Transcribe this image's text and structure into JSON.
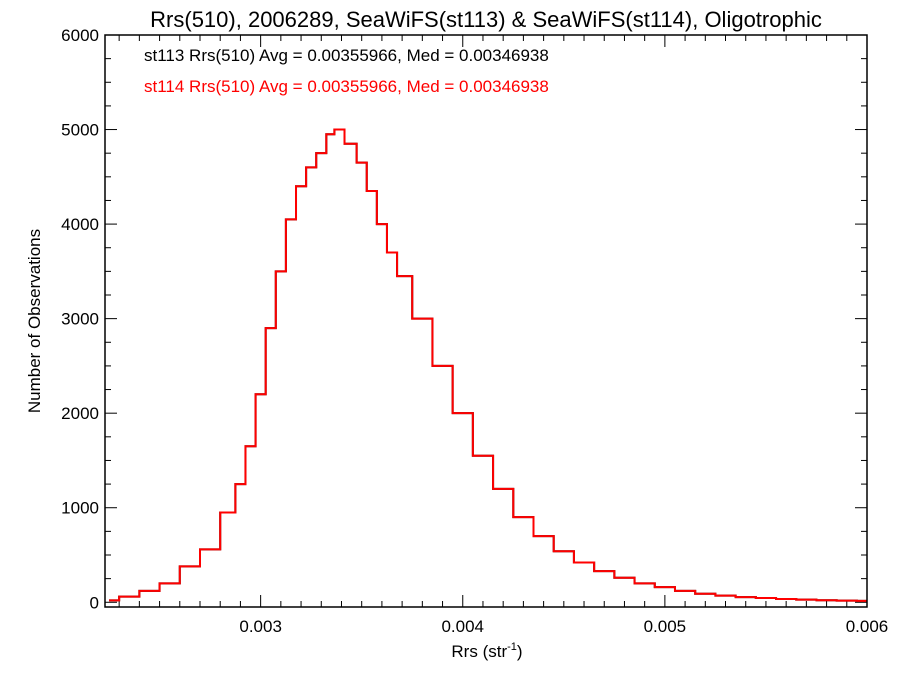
{
  "chart_data": {
    "type": "line",
    "title": "Rrs(510), 2006289, SeaWiFS(st113) & SeaWiFS(st114), Oligotrophic",
    "xlabel": "Rrs (str",
    "xlabel_superscript": "-1",
    "xlabel_close": ")",
    "ylabel": "Number of Observations",
    "xlim": [
      0.00223,
      0.006
    ],
    "ylim": [
      -50,
      6000
    ],
    "xticks": [
      {
        "value": 0.003,
        "label": "0.003"
      },
      {
        "value": 0.004,
        "label": "0.004"
      },
      {
        "value": 0.005,
        "label": "0.005"
      },
      {
        "value": 0.006,
        "label": "0.006"
      }
    ],
    "yticks": [
      {
        "value": 0,
        "label": "0"
      },
      {
        "value": 1000,
        "label": "1000"
      },
      {
        "value": 2000,
        "label": "2000"
      },
      {
        "value": 3000,
        "label": "3000"
      },
      {
        "value": 4000,
        "label": "4000"
      },
      {
        "value": 5000,
        "label": "5000"
      },
      {
        "value": 6000,
        "label": "6000"
      }
    ],
    "x_minor_per_major": 10,
    "y_minor_per_major": 4,
    "grid": false,
    "annotations": [
      {
        "text": "st113 Rrs(510) Avg = 0.00355966, Med = 0.00346938",
        "color": "#000000"
      },
      {
        "text": "st114 Rrs(510) Avg = 0.00355966, Med = 0.00346938",
        "color": "#ff0000"
      }
    ],
    "series": [
      {
        "color": "#000000",
        "step": "histogram",
        "x": [
          0.00225,
          0.00235,
          0.00245,
          0.00255,
          0.00265,
          0.00275,
          0.00285,
          0.0029,
          0.00295,
          0.003,
          0.00305,
          0.0031,
          0.00315,
          0.0032,
          0.00325,
          0.0033,
          0.00335,
          0.00338,
          0.00345,
          0.0035,
          0.00355,
          0.0036,
          0.00365,
          0.0037,
          0.0038,
          0.0039,
          0.004,
          0.0041,
          0.0042,
          0.0043,
          0.0044,
          0.0045,
          0.0046,
          0.0047,
          0.0048,
          0.0049,
          0.005,
          0.0051,
          0.0052,
          0.0053,
          0.0054,
          0.0055,
          0.0056,
          0.0057,
          0.0058,
          0.0059,
          0.006
        ],
        "y": [
          20,
          60,
          120,
          200,
          380,
          560,
          950,
          1250,
          1650,
          2200,
          2900,
          3500,
          4050,
          4400,
          4600,
          4750,
          4950,
          5000,
          4850,
          4650,
          4350,
          4000,
          3700,
          3450,
          3000,
          2500,
          2000,
          1550,
          1200,
          900,
          700,
          540,
          420,
          330,
          260,
          200,
          160,
          120,
          90,
          70,
          55,
          45,
          35,
          28,
          22,
          18,
          15
        ]
      },
      {
        "color": "#ff0000",
        "step": "histogram",
        "x": [
          0.00225,
          0.00235,
          0.00245,
          0.00255,
          0.00265,
          0.00275,
          0.00285,
          0.0029,
          0.00295,
          0.003,
          0.00305,
          0.0031,
          0.00315,
          0.0032,
          0.00325,
          0.0033,
          0.00335,
          0.00338,
          0.00345,
          0.0035,
          0.00355,
          0.0036,
          0.00365,
          0.0037,
          0.0038,
          0.0039,
          0.004,
          0.0041,
          0.0042,
          0.0043,
          0.0044,
          0.0045,
          0.0046,
          0.0047,
          0.0048,
          0.0049,
          0.005,
          0.0051,
          0.0052,
          0.0053,
          0.0054,
          0.0055,
          0.0056,
          0.0057,
          0.0058,
          0.0059,
          0.006
        ],
        "y": [
          20,
          60,
          120,
          200,
          380,
          560,
          950,
          1250,
          1650,
          2200,
          2900,
          3500,
          4050,
          4400,
          4600,
          4750,
          4950,
          5000,
          4850,
          4650,
          4350,
          4000,
          3700,
          3450,
          3000,
          2500,
          2000,
          1550,
          1200,
          900,
          700,
          540,
          420,
          330,
          260,
          200,
          160,
          120,
          90,
          70,
          55,
          45,
          35,
          28,
          22,
          18,
          15
        ]
      }
    ]
  }
}
